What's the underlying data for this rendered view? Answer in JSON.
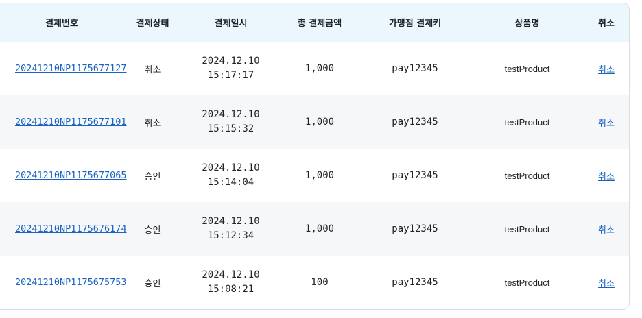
{
  "columns": [
    "결제번호",
    "결제상태",
    "결제일시",
    "총 결제금액",
    "가맹점 결제키",
    "상품명",
    "취소"
  ],
  "rows": [
    {
      "id": "20241210NP1175677127",
      "status": "취소",
      "date": "2024.12.10",
      "time": "15:17:17",
      "amount": "1,000",
      "merchant_key": "pay12345",
      "product": "testProduct",
      "cancel": "취소"
    },
    {
      "id": "20241210NP1175677101",
      "status": "취소",
      "date": "2024.12.10",
      "time": "15:15:32",
      "amount": "1,000",
      "merchant_key": "pay12345",
      "product": "testProduct",
      "cancel": "취소"
    },
    {
      "id": "20241210NP1175677065",
      "status": "승인",
      "date": "2024.12.10",
      "time": "15:14:04",
      "amount": "1,000",
      "merchant_key": "pay12345",
      "product": "testProduct",
      "cancel": "취소"
    },
    {
      "id": "20241210NP1175676174",
      "status": "승인",
      "date": "2024.12.10",
      "time": "15:12:34",
      "amount": "1,000",
      "merchant_key": "pay12345",
      "product": "testProduct",
      "cancel": "취소"
    },
    {
      "id": "20241210NP1175675753",
      "status": "승인",
      "date": "2024.12.10",
      "time": "15:08:21",
      "amount": "100",
      "merchant_key": "pay12345",
      "product": "testProduct",
      "cancel": "취소"
    }
  ],
  "colors": {
    "header_bg": "#ebf6fd",
    "alt_row_bg": "#f5f7f9",
    "link": "#1a63c2",
    "border": "#d9dde3"
  }
}
